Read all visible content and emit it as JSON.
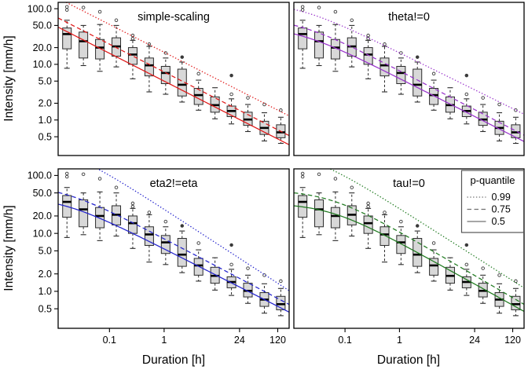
{
  "figure": {
    "ylabel": "Intensity [mm/h]",
    "xlabel": "Duration [h]"
  },
  "chart_data": {
    "type": "boxplot",
    "description": "2x2 grid of log-log IDF plots: intensity boxplots vs duration with fitted p-quantile curves (q = A*(d+theta)^b)",
    "x_scale": "log",
    "y_scale": "log",
    "x_domain": [
      0.0115,
      194
    ],
    "y_domain": [
      0.23,
      130
    ],
    "xlabel": "Duration [h]",
    "ylabel": "Intensity [mm/h]",
    "x_ticks": [
      {
        "v": 0.1,
        "label": "0.1"
      },
      {
        "v": 1,
        "label": "1"
      },
      {
        "v": 24,
        "label": "24"
      },
      {
        "v": 120,
        "label": "120"
      }
    ],
    "y_ticks": [
      {
        "v": 100,
        "label": "100.0"
      },
      {
        "v": 50,
        "label": "50.0"
      },
      {
        "v": 20,
        "label": "20.0"
      },
      {
        "v": 10,
        "label": "10.0"
      },
      {
        "v": 5,
        "label": "5.0"
      },
      {
        "v": 2,
        "label": "2.0"
      },
      {
        "v": 1,
        "label": "1.0"
      },
      {
        "v": 0.5,
        "label": "0.5"
      }
    ],
    "boxplots": [
      {
        "d": 0.01667,
        "whislo": 8.5,
        "q1": 19,
        "med": 35,
        "q3": 45,
        "whishi": 62,
        "outliers": [
          95,
          108
        ]
      },
      {
        "d": 0.03333,
        "whislo": 9.5,
        "q1": 13,
        "med": 26,
        "q3": 38,
        "whishi": 50,
        "outliers": [
          105
        ]
      },
      {
        "d": 0.06667,
        "whislo": 7.5,
        "q1": 12.5,
        "med": 20,
        "q3": 28,
        "whishi": 52,
        "outliers": [
          88
        ]
      },
      {
        "d": 0.13333,
        "whislo": 9.0,
        "q1": 14,
        "med": 21,
        "q3": 30,
        "whishi": 50,
        "outliers": [
          62
        ]
      },
      {
        "d": 0.26667,
        "whislo": 5.5,
        "q1": 10,
        "med": 15,
        "q3": 20,
        "whishi": 27,
        "outliers": [
          33,
          29
        ]
      },
      {
        "d": 0.53333,
        "whislo": 3.2,
        "q1": 6.2,
        "med": 9.6,
        "q3": 13,
        "whishi": 21,
        "outliers": [
          23
        ]
      },
      {
        "d": 1.0667,
        "whislo": 2.9,
        "q1": 4.5,
        "med": 7.0,
        "q3": 9.2,
        "whishi": 13,
        "outliers": [
          16
        ]
      },
      {
        "d": 2.1333,
        "whislo": 2.1,
        "q1": 2.7,
        "med": 4.3,
        "q3": 8.2,
        "whishi": 11,
        "outliers": [
          {
            "v": 13.5,
            "filled": true
          }
        ]
      },
      {
        "d": 4.2667,
        "whislo": 1.5,
        "q1": 1.9,
        "med": 2.8,
        "q3": 3.7,
        "whishi": 5.2,
        "outliers": [
          6.8
        ]
      },
      {
        "d": 8.5333,
        "whislo": 1.05,
        "q1": 1.38,
        "med": 1.85,
        "q3": 2.6,
        "whishi": 3.8,
        "outliers": []
      },
      {
        "d": 17.067,
        "whislo": 0.85,
        "q1": 1.15,
        "med": 1.45,
        "q3": 1.78,
        "whishi": 2.4,
        "outliers": [
          2.9,
          {
            "v": 6.3,
            "filled": true
          }
        ]
      },
      {
        "d": 34.133,
        "whislo": 0.62,
        "q1": 0.8,
        "med": 1.02,
        "q3": 1.38,
        "whishi": 1.9,
        "outliers": [
          2.5
        ]
      },
      {
        "d": 68.267,
        "whislo": 0.42,
        "q1": 0.55,
        "med": 0.72,
        "q3": 0.95,
        "whishi": 1.35,
        "outliers": [
          1.9
        ]
      },
      {
        "d": 136.53,
        "whislo": 0.38,
        "q1": 0.48,
        "med": 0.6,
        "q3": 0.82,
        "whishi": 1.12,
        "outliers": [
          1.5
        ]
      }
    ],
    "panels": [
      {
        "key": "simple-scaling",
        "title": "simple-scaling",
        "color": "#e01717",
        "row": 0,
        "col": 0,
        "quantiles": [
          {
            "p": "0.99",
            "style": "dotted",
            "A": 16.5,
            "b": -0.5,
            "theta": 0
          },
          {
            "p": "0.75",
            "style": "dashed",
            "A": 7.3,
            "b": -0.5,
            "theta": 0
          },
          {
            "p": "0.5",
            "style": "solid",
            "A": 5.0,
            "b": -0.5,
            "theta": 0
          }
        ]
      },
      {
        "key": "theta",
        "title": "theta!=0",
        "color": "#9932cc",
        "row": 0,
        "col": 1,
        "quantiles": [
          {
            "p": "0.99",
            "style": "dotted",
            "A": 16.2,
            "b": -0.483,
            "theta": 0.013
          },
          {
            "p": "0.75",
            "style": "dashed",
            "A": 7.7,
            "b": -0.507,
            "theta": 0.013
          },
          {
            "p": "0.5",
            "style": "solid",
            "A": 5.6,
            "b": -0.496,
            "theta": 0.013
          }
        ]
      },
      {
        "key": "eta2",
        "title": "eta2!=eta",
        "color": "#2323cd",
        "row": 1,
        "col": 0,
        "quantiles": [
          {
            "p": "0.99",
            "style": "dotted",
            "A": 26.2,
            "b": -0.615,
            "theta": 0.013
          },
          {
            "p": "0.75",
            "style": "dashed",
            "A": 8.1,
            "b": -0.496,
            "theta": 0.013
          },
          {
            "p": "0.5",
            "style": "solid",
            "A": 5.43,
            "b": -0.478,
            "theta": 0.013
          }
        ]
      },
      {
        "key": "tau",
        "title": "tau!=0",
        "color": "#1f7a1f",
        "row": 1,
        "col": 1,
        "legend": true,
        "quantiles": [
          {
            "p": "0.99",
            "style": "dotted",
            "A": 27.0,
            "b": -0.6,
            "theta": 0.02
          },
          {
            "p": "0.75",
            "style": "dashed",
            "A": 10.8,
            "b": -0.55,
            "theta": 0.05
          },
          {
            "p": "0.5",
            "style": "solid",
            "A": 7.0,
            "b": -0.521,
            "theta": 0.05
          }
        ]
      }
    ],
    "legend": {
      "title": "p-quantile",
      "line_color": "#707070",
      "entries": [
        {
          "label": "0.99",
          "style": "dotted"
        },
        {
          "label": "0.75",
          "style": "dashed"
        },
        {
          "label": "0.5",
          "style": "solid"
        }
      ]
    },
    "style": {
      "box_fill": "#d8d8d8",
      "box_stroke": "#2b2b2b",
      "median_color": "#000000",
      "outlier_color": "#3a3a3a",
      "border_color": "#000000"
    }
  }
}
